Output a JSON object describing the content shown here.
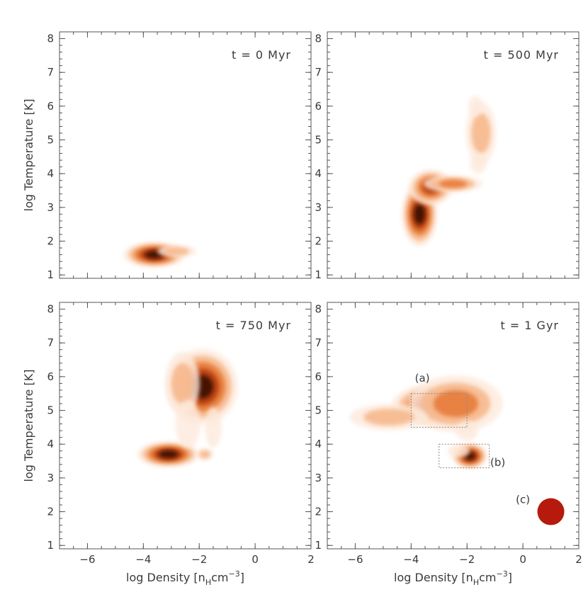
{
  "chart_data": {
    "type": "heatmap",
    "shared": {
      "xlabel_prefix": "log Density [n",
      "xlabel_sub": "H",
      "xlabel_mid": "cm",
      "xlabel_sup": "−3",
      "xlabel_suffix": "]",
      "ylabel": "log Temperature [K]",
      "xlim": [
        -7,
        2
      ],
      "ylim": [
        0.9,
        8.2
      ],
      "x_ticks": [
        -6,
        -4,
        -2,
        0,
        2
      ],
      "x_tick_labels": [
        "−6",
        "−4",
        "−2",
        "0",
        "2"
      ],
      "y_ticks": [
        1,
        2,
        3,
        4,
        5,
        6,
        7,
        8
      ],
      "y_tick_labels": [
        "1",
        "2",
        "3",
        "4",
        "5",
        "6",
        "7",
        "8"
      ],
      "grid": false,
      "colormap": [
        "#fde9db",
        "#f7b98e",
        "#e77b3a",
        "#b53c10",
        "#3a0a02"
      ]
    },
    "panels": [
      {
        "title": "t = 0 Myr",
        "blobs": [
          {
            "x": -3.6,
            "y": 1.6,
            "sx": 0.35,
            "sy": 0.12,
            "level": 5
          },
          {
            "x": -2.8,
            "y": 1.7,
            "sx": 0.45,
            "sy": 0.12,
            "level": 2
          }
        ],
        "regions": [],
        "markers": []
      },
      {
        "title": "t = 500 Myr",
        "blobs": [
          {
            "x": -3.7,
            "y": 2.8,
            "sx": 0.2,
            "sy": 0.3,
            "level": 5
          },
          {
            "x": -3.3,
            "y": 3.6,
            "sx": 0.3,
            "sy": 0.2,
            "level": 4
          },
          {
            "x": -2.5,
            "y": 3.7,
            "sx": 0.5,
            "sy": 0.12,
            "level": 3
          },
          {
            "x": -1.5,
            "y": 5.2,
            "sx": 0.35,
            "sy": 0.6,
            "level": 2
          },
          {
            "x": -1.7,
            "y": 6.0,
            "sx": 0.25,
            "sy": 0.3,
            "level": 1
          },
          {
            "x": -1.6,
            "y": 4.3,
            "sx": 0.3,
            "sy": 0.3,
            "level": 1
          }
        ],
        "regions": [],
        "markers": []
      },
      {
        "title": "t = 750 Myr",
        "blobs": [
          {
            "x": -3.1,
            "y": 3.7,
            "sx": 0.35,
            "sy": 0.12,
            "level": 5
          },
          {
            "x": -1.9,
            "y": 5.7,
            "sx": 0.4,
            "sy": 0.35,
            "level": 5
          },
          {
            "x": -2.6,
            "y": 5.8,
            "sx": 0.4,
            "sy": 0.6,
            "level": 2
          },
          {
            "x": -2.4,
            "y": 4.6,
            "sx": 0.45,
            "sy": 0.7,
            "level": 1
          },
          {
            "x": -1.8,
            "y": 3.7,
            "sx": 0.2,
            "sy": 0.12,
            "level": 2
          },
          {
            "x": -1.5,
            "y": 4.5,
            "sx": 0.3,
            "sy": 0.6,
            "level": 1
          }
        ],
        "regions": [],
        "markers": []
      },
      {
        "title": "t = 1 Gyr",
        "blobs": [
          {
            "x": -3.1,
            "y": 5.15,
            "sx": 0.5,
            "sy": 0.2,
            "level": 5
          },
          {
            "x": -2.4,
            "y": 5.2,
            "sx": 0.8,
            "sy": 0.4,
            "level": 3
          },
          {
            "x": -4.8,
            "y": 4.8,
            "sx": 0.9,
            "sy": 0.25,
            "level": 2
          },
          {
            "x": -1.9,
            "y": 3.65,
            "sx": 0.2,
            "sy": 0.12,
            "level": 5
          },
          {
            "x": -2.3,
            "y": 3.8,
            "sx": 0.4,
            "sy": 0.2,
            "level": 1
          },
          {
            "x": -2.0,
            "y": 4.4,
            "sx": 0.4,
            "sy": 0.3,
            "level": 1
          }
        ],
        "regions": [
          {
            "label": "(a)",
            "x0": -4.0,
            "x1": -2.0,
            "y0": 4.5,
            "y1": 5.5,
            "label_x": -3.6,
            "label_y": 5.85
          },
          {
            "label": "(b)",
            "x0": -3.0,
            "x1": -1.2,
            "y0": 3.3,
            "y1": 4.0,
            "label_x": -0.9,
            "label_y": 3.35
          }
        ],
        "markers": [
          {
            "label": "(c)",
            "x": 1.0,
            "y": 2.0,
            "color": "#b51a0c",
            "label_x": 0.0,
            "label_y": 2.25
          }
        ]
      }
    ]
  }
}
